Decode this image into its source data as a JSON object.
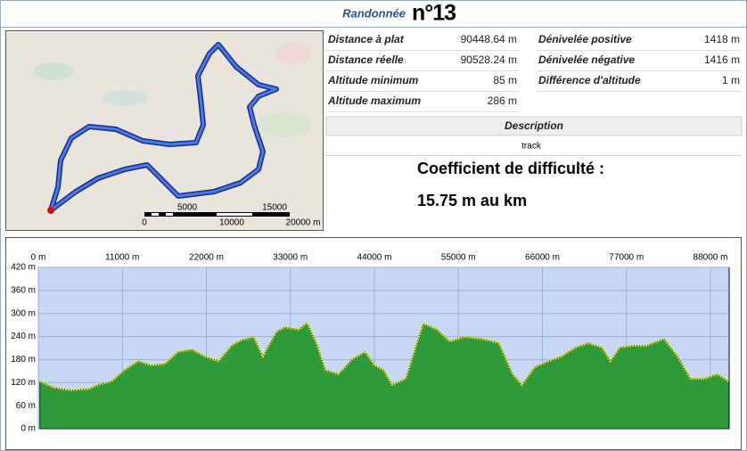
{
  "header": {
    "title": "Randonnée",
    "number": "n°13"
  },
  "stats": {
    "left": [
      {
        "label": "Distance à plat",
        "value": "90448.64 m"
      },
      {
        "label": "Distance réelle",
        "value": "90528.24 m"
      },
      {
        "label": "Altitude minimum",
        "value": "85 m"
      },
      {
        "label": "Altitude maximum",
        "value": "286 m"
      }
    ],
    "right": [
      {
        "label": "Dénivelée positive",
        "value": "1418 m"
      },
      {
        "label": "Dénivelée négative",
        "value": "1416 m"
      },
      {
        "label": "Différence d'altitude",
        "value": "1 m"
      }
    ]
  },
  "description": {
    "heading": "Description",
    "text": "track"
  },
  "difficulty": {
    "line1": "Coefficient de difficulté :",
    "line2": "15.75 m au km"
  },
  "map": {
    "scale_labels": [
      "0",
      "5000",
      "10000",
      "15000",
      "20000 m"
    ]
  },
  "chart_data": {
    "type": "area",
    "x": [
      200,
      2000,
      4300,
      6700,
      7800,
      9600,
      11300,
      13100,
      14800,
      16600,
      18300,
      20100,
      21800,
      23600,
      25300,
      26500,
      28200,
      29400,
      30000,
      31200,
      32300,
      34100,
      35200,
      36400,
      37600,
      39300,
      41100,
      42800,
      44000,
      45200,
      46300,
      48100,
      49200,
      50400,
      52200,
      53900,
      55700,
      58000,
      60300,
      62100,
      63300,
      65000,
      66800,
      68500,
      70300,
      72000,
      73800,
      74900,
      76100,
      77800,
      79600,
      81900,
      83700,
      85400,
      87200,
      88900,
      90400
    ],
    "values": [
      123,
      107,
      100,
      104,
      114,
      123,
      153,
      176,
      165,
      169,
      200,
      206,
      188,
      176,
      216,
      230,
      239,
      188,
      211,
      253,
      264,
      258,
      276,
      223,
      153,
      142,
      181,
      200,
      165,
      153,
      114,
      130,
      200,
      274,
      258,
      227,
      239,
      234,
      223,
      142,
      114,
      160,
      176,
      188,
      211,
      223,
      211,
      176,
      211,
      216,
      216,
      234,
      188,
      130,
      130,
      142,
      123
    ],
    "fill": "#2e9a3a",
    "line_color": "#e8e020",
    "plot_background": "#c6d8f6",
    "xlim": [
      0,
      90448.64
    ],
    "ylim": [
      0,
      420
    ],
    "xticks": [
      {
        "value": 0,
        "label": "0 m"
      },
      {
        "value": 11000,
        "label": "11000 m"
      },
      {
        "value": 22000,
        "label": "22000 m"
      },
      {
        "value": 33000,
        "label": "33000 m"
      },
      {
        "value": 44000,
        "label": "44000 m"
      },
      {
        "value": 55000,
        "label": "55000 m"
      },
      {
        "value": 66000,
        "label": "66000 m"
      },
      {
        "value": 77000,
        "label": "77000 m"
      },
      {
        "value": 88000,
        "label": "88000 m"
      }
    ],
    "yticks": [
      {
        "value": 0,
        "label": "0 m"
      },
      {
        "value": 60,
        "label": "60 m"
      },
      {
        "value": 120,
        "label": "120 m"
      },
      {
        "value": 180,
        "label": "180 m"
      },
      {
        "value": 240,
        "label": "240 m"
      },
      {
        "value": 300,
        "label": "300 m"
      },
      {
        "value": 360,
        "label": "360 m"
      },
      {
        "value": 420,
        "label": "420 m"
      }
    ],
    "grid": true
  }
}
